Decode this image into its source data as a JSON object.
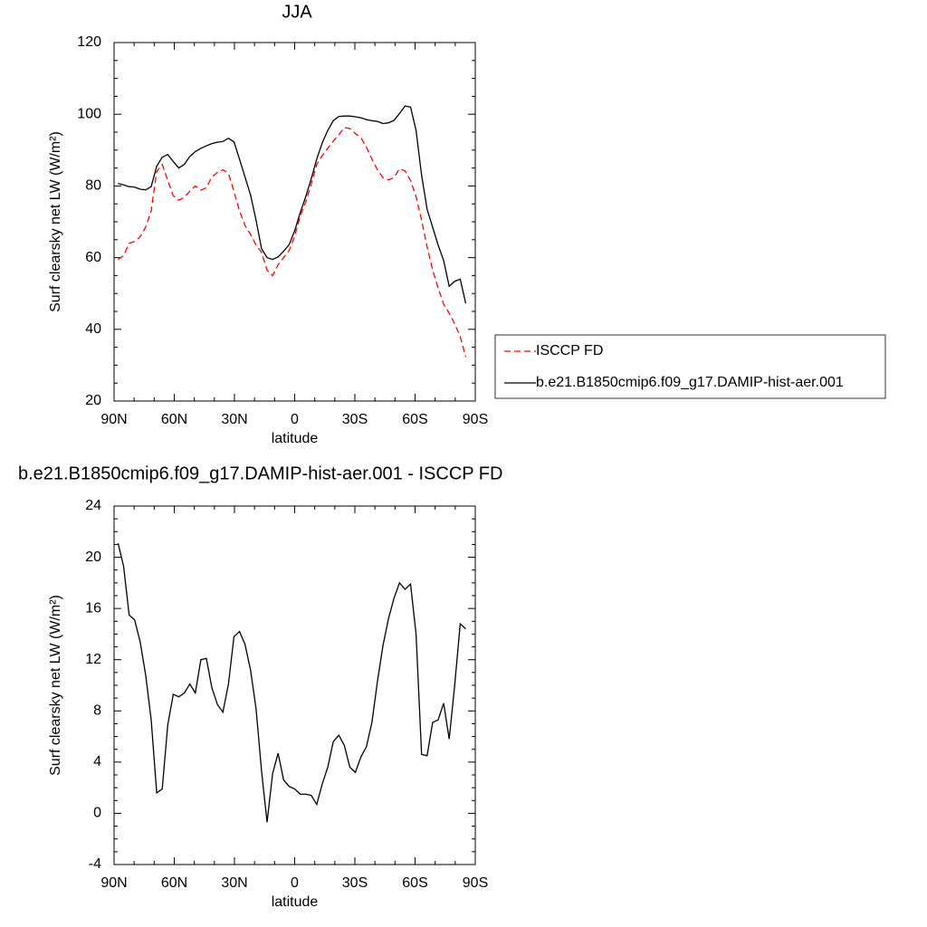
{
  "chart_data": [
    {
      "type": "line",
      "title": "JJA",
      "xlabel": "latitude",
      "ylabel": "Surf clearsky net LW (W/m²)",
      "x": [
        88,
        85.25,
        82.5,
        79.75,
        77,
        74.25,
        71.5,
        68.75,
        66,
        63.25,
        60.5,
        57.75,
        55,
        52.25,
        49.5,
        46.75,
        44,
        41.25,
        38.5,
        35.75,
        33,
        30.25,
        27.5,
        24.75,
        22,
        19.25,
        16.5,
        13.75,
        11,
        8.25,
        5.5,
        2.75,
        0,
        -2.75,
        -5.5,
        -8.25,
        -11,
        -13.75,
        -16.5,
        -19.25,
        -22,
        -24.75,
        -27.5,
        -30.25,
        -33,
        -35.75,
        -38.5,
        -41.25,
        -44,
        -46.75,
        -49.5,
        -52.25,
        -55,
        -57.75,
        -60.5,
        -63.25,
        -66,
        -68.75,
        -71.5,
        -74.25,
        -77,
        -79.75,
        -82.5,
        -85.25
      ],
      "series": [
        {
          "name": "ISCCP FD",
          "color": "#ff0000",
          "line_style": "dashed",
          "values": [
            59.5,
            60.5,
            64,
            64.5,
            65.8,
            68.5,
            73,
            84,
            86,
            81.5,
            77.3,
            76,
            76.8,
            78.5,
            80,
            78.8,
            79.5,
            82.5,
            83.8,
            84.5,
            83.5,
            78.5,
            73,
            69,
            66.5,
            63.5,
            61.5,
            56.5,
            55,
            58,
            60,
            62,
            66,
            71.5,
            75.5,
            80.5,
            86,
            88.5,
            90.5,
            92.5,
            94.3,
            96.3,
            96,
            94.6,
            93.5,
            90.8,
            87.5,
            84.5,
            82.3,
            81.7,
            82.3,
            84.8,
            84.2,
            81.5,
            77,
            70.5,
            63,
            56.5,
            51.5,
            47,
            44.5,
            41.5,
            38,
            32.3
          ]
        },
        {
          "name": "b.e21.B1850cmip6.f09_g17.DAMIP-hist-aer.001",
          "color": "#000000",
          "line_style": "solid",
          "values": [
            80.7,
            80.3,
            79.8,
            79.7,
            79.1,
            78.9,
            79.8,
            85.5,
            88,
            88.8,
            86.8,
            85,
            86,
            88.2,
            89.6,
            90.5,
            91.2,
            91.8,
            92.2,
            92.4,
            93.3,
            92.3,
            87.5,
            82.5,
            77.5,
            70.5,
            62.5,
            60,
            59.5,
            60.2,
            61.8,
            63.6,
            67.5,
            72.5,
            77,
            82,
            87.5,
            92,
            95.5,
            98.2,
            99.4,
            99.5,
            99.5,
            99.3,
            99,
            98.5,
            98.2,
            98,
            97.4,
            97.6,
            98.3,
            100.2,
            102.3,
            102,
            95.5,
            83,
            73.5,
            68.5,
            63.5,
            59.2,
            52,
            53.4,
            54,
            47.2
          ]
        }
      ],
      "xlim": [
        90,
        -90
      ],
      "xticks": [
        {
          "value": 90,
          "label": "90N"
        },
        {
          "value": 60,
          "label": "60N"
        },
        {
          "value": 30,
          "label": "30N"
        },
        0,
        {
          "value": -30,
          "label": "30S"
        },
        {
          "value": -60,
          "label": "60S"
        },
        {
          "value": -90,
          "label": "90S"
        }
      ],
      "ylim": [
        20,
        120
      ],
      "yticks": [
        20,
        40,
        60,
        80,
        100,
        120
      ],
      "legend": "right"
    },
    {
      "type": "line",
      "title": "b.e21.B1850cmip6.f09_g17.DAMIP-hist-aer.001 - ISCCP FD",
      "xlabel": "latitude",
      "ylabel": "Surf clearsky net LW (W/m²)",
      "x": [
        88,
        85.25,
        82.5,
        79.75,
        77,
        74.25,
        71.5,
        68.75,
        66,
        63.25,
        60.5,
        57.75,
        55,
        52.25,
        49.5,
        46.75,
        44,
        41.25,
        38.5,
        35.75,
        33,
        30.25,
        27.5,
        24.75,
        22,
        19.25,
        16.5,
        13.75,
        11,
        8.25,
        5.5,
        2.75,
        0,
        -2.75,
        -5.5,
        -8.25,
        -11,
        -13.75,
        -16.5,
        -19.25,
        -22,
        -24.75,
        -27.5,
        -30.25,
        -33,
        -35.75,
        -38.5,
        -41.25,
        -44,
        -46.75,
        -49.5,
        -52.25,
        -55,
        -57.75,
        -60.5,
        -63.25,
        -66,
        -68.75,
        -71.5,
        -74.25,
        -77,
        -79.75,
        -82.5,
        -85.25
      ],
      "values": [
        21.1,
        19.3,
        15.5,
        15.1,
        13.4,
        10.8,
        7.3,
        1.6,
        1.9,
        6.9,
        9.3,
        9.1,
        9.4,
        10.1,
        9.4,
        12,
        12.1,
        9.8,
        8.5,
        7.9,
        10.1,
        13.8,
        14.2,
        13.2,
        11.2,
        8.2,
        3.3,
        -0.7,
        3.1,
        4.7,
        2.6,
        2.1,
        1.9,
        1.5,
        1.5,
        1.4,
        0.7,
        2.3,
        3.6,
        5.6,
        6.1,
        5.3,
        3.6,
        3.2,
        4.4,
        5.2,
        7.1,
        10.3,
        13.1,
        15.2,
        16.8,
        18,
        17.5,
        17.9,
        14,
        4.6,
        4.5,
        7.1,
        7.3,
        8.6,
        5.8,
        10,
        14.8,
        14.4
      ],
      "color": "#000000",
      "xlim": [
        90,
        -90
      ],
      "xticks": [
        {
          "value": 90,
          "label": "90N"
        },
        {
          "value": 60,
          "label": "60N"
        },
        {
          "value": 30,
          "label": "30N"
        },
        0,
        {
          "value": -30,
          "label": "30S"
        },
        {
          "value": -60,
          "label": "60S"
        },
        {
          "value": -90,
          "label": "90S"
        }
      ],
      "ylim": [
        -4,
        24
      ],
      "yticks": [
        -4,
        0,
        4,
        8,
        12,
        16,
        20,
        24
      ]
    }
  ]
}
